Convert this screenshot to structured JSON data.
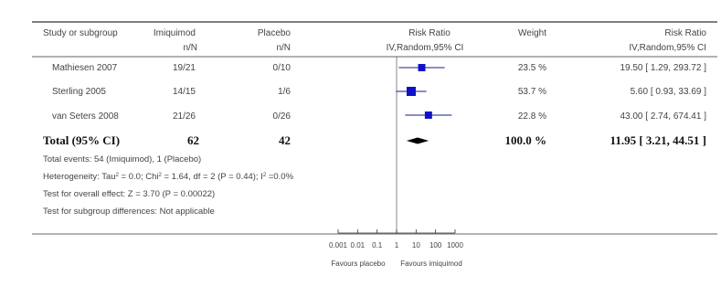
{
  "chart_data": {
    "type": "forest",
    "headers": {
      "study": "Study or subgroup",
      "group1": "Imiquimod",
      "group1_sub": "n/N",
      "group2": "Placebo",
      "group2_sub": "n/N",
      "effect": "Risk Ratio",
      "effect_sub": "IV,Random,95% CI",
      "weight": "Weight",
      "effect_text": "Risk Ratio",
      "effect_text_sub": "IV,Random,95% CI"
    },
    "studies": [
      {
        "name": "Mathiesen 2007",
        "g1": "19/21",
        "g2": "0/10",
        "weight_label": "23.5 %",
        "weight": 23.5,
        "rr": 19.5,
        "lo": 1.29,
        "hi": 293.72,
        "ci_label": "19.50 [ 1.29, 293.72 ]"
      },
      {
        "name": "Sterling 2005",
        "g1": "14/15",
        "g2": "1/6",
        "weight_label": "53.7 %",
        "weight": 53.7,
        "rr": 5.6,
        "lo": 0.93,
        "hi": 33.69,
        "ci_label": "5.60 [ 0.93, 33.69 ]"
      },
      {
        "name": "van Seters 2008",
        "g1": "21/26",
        "g2": "0/26",
        "weight_label": "22.8 %",
        "weight": 22.8,
        "rr": 43.0,
        "lo": 2.74,
        "hi": 674.41,
        "ci_label": "43.00 [ 2.74, 674.41 ]"
      }
    ],
    "total": {
      "name": "Total (95% CI)",
      "g1": "62",
      "g2": "42",
      "weight_label": "100.0 %",
      "rr": 11.95,
      "lo": 3.21,
      "hi": 44.51,
      "ci_label": "11.95 [ 3.21, 44.51 ]"
    },
    "notes": {
      "events": "Total events: 54 (Imiquimod), 1 (Placebo)",
      "het_a": "Heterogeneity: Tau",
      "het_b": " = 0.0; Chi",
      "het_c": " = 1.64, df = 2 (P = 0.44); I",
      "het_d": " =0.0%",
      "sup": "2",
      "overall": "Test for overall effect: Z = 3.70 (P = 0.00022)",
      "subgroup": "Test for subgroup differences: Not applicable"
    },
    "axis": {
      "scale": "log",
      "range": [
        0.001,
        1000
      ],
      "ticks": [
        0.001,
        0.01,
        0.1,
        1,
        10,
        100,
        1000
      ],
      "tick_labels": [
        "0.001",
        "0.01",
        "0.1",
        "1",
        "10",
        "100",
        "1000"
      ],
      "favours_left": "Favours placebo",
      "favours_right": "Favours imiquimod"
    }
  }
}
